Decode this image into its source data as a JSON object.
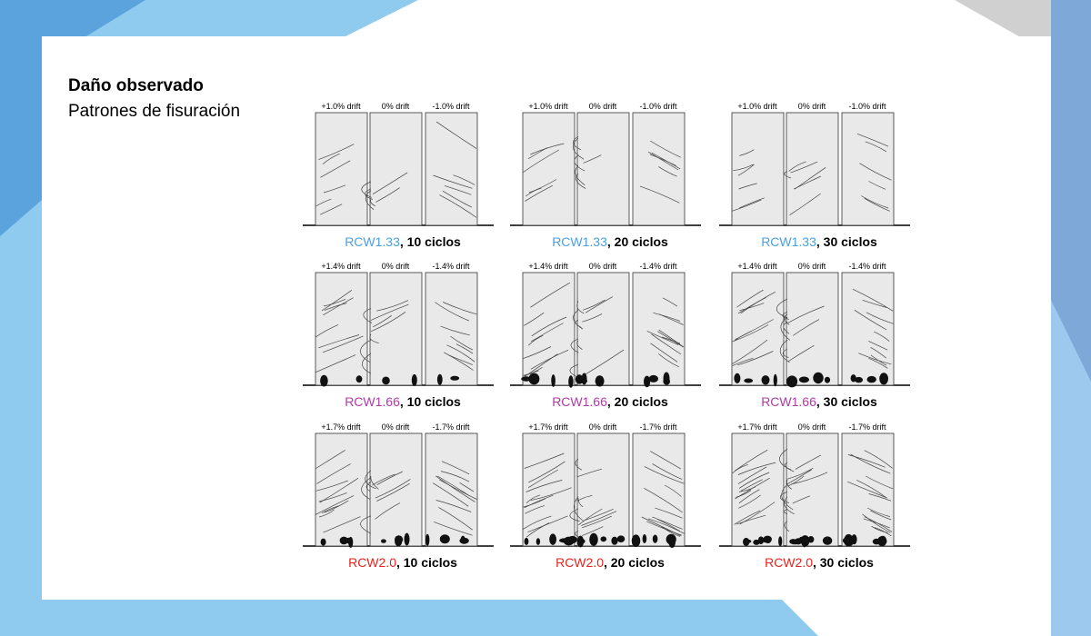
{
  "slide": {
    "title": "Daño observado",
    "subtitle": "Patrones de fisuración"
  },
  "colors": {
    "rcw133": "#4a9fe0",
    "rcw166": "#b03aa8",
    "rcw20": "#e8231e",
    "background_light": "#8ecbef",
    "background_mid": "#5aa3dc",
    "background_gray": "#d0d0d0",
    "wall_fill": "#e9e9e9"
  },
  "figure": {
    "panels": [
      {
        "specimen": "RCW1.33",
        "color": "#4a9fe0",
        "cycles_text": ", 10 ciclos",
        "drift_labels": [
          "+1.0% drift",
          "0% drift",
          "-1.0% drift"
        ],
        "damage": 0
      },
      {
        "specimen": "RCW1.33",
        "color": "#4a9fe0",
        "cycles_text": ", 20 ciclos",
        "drift_labels": [
          "+1.0% drift",
          "0% drift",
          "-1.0% drift"
        ],
        "damage": 0
      },
      {
        "specimen": "RCW1.33",
        "color": "#4a9fe0",
        "cycles_text": ", 30 ciclos",
        "drift_labels": [
          "+1.0% drift",
          "0% drift",
          "-1.0% drift"
        ],
        "damage": 0
      },
      {
        "specimen": "RCW1.66",
        "color": "#b03aa8",
        "cycles_text": ", 10 ciclos",
        "drift_labels": [
          "+1.4% drift",
          "0% drift",
          "-1.4% drift"
        ],
        "damage": 1
      },
      {
        "specimen": "RCW1.66",
        "color": "#b03aa8",
        "cycles_text": ", 20 ciclos",
        "drift_labels": [
          "+1.4% drift",
          "0% drift",
          "-1.4% drift"
        ],
        "damage": 2
      },
      {
        "specimen": "RCW1.66",
        "color": "#b03aa8",
        "cycles_text": ", 30 ciclos",
        "drift_labels": [
          "+1.4% drift",
          "0% drift",
          "-1.4% drift"
        ],
        "damage": 2
      },
      {
        "specimen": "RCW2.0",
        "color": "#e8231e",
        "cycles_text": ", 10 ciclos",
        "drift_labels": [
          "+1.7% drift",
          "0% drift",
          "-1.7% drift"
        ],
        "damage": 2
      },
      {
        "specimen": "RCW2.0",
        "color": "#e8231e",
        "cycles_text": ", 20 ciclos",
        "drift_labels": [
          "+1.7% drift",
          "0% drift",
          "-1.7% drift"
        ],
        "damage": 3
      },
      {
        "specimen": "RCW2.0",
        "color": "#e8231e",
        "cycles_text": ", 30 ciclos",
        "drift_labels": [
          "+1.7% drift",
          "0% drift",
          "-1.7% drift"
        ],
        "damage": 4
      }
    ]
  }
}
